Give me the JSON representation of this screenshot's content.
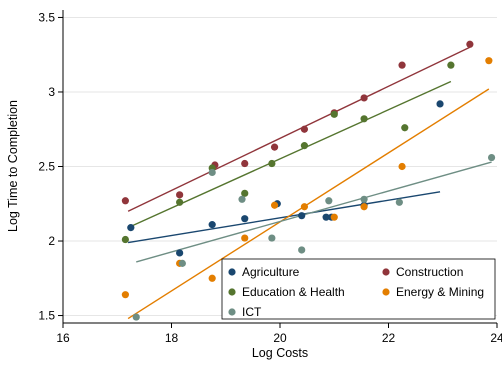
{
  "chart_data": {
    "type": "scatter",
    "title": "",
    "xlabel": "Log Costs",
    "ylabel": "Log Time to Completion",
    "xlim": [
      16,
      24
    ],
    "ylim": [
      1.45,
      3.55
    ],
    "x_ticks": [
      16,
      18,
      20,
      22,
      24
    ],
    "x_tick_labels": [
      "16",
      "18",
      "20",
      "22",
      "24"
    ],
    "y_ticks": [
      1.5,
      2,
      2.5,
      3,
      3.5
    ],
    "y_tick_labels": [
      "1.5",
      "2",
      "2.5",
      "3",
      "3.5"
    ],
    "grid": true,
    "grid_axis": "y",
    "legend_position": "bottom-right",
    "legend_columns": 2,
    "series": [
      {
        "name": "Agriculture",
        "color": "#1a476f",
        "points": [
          [
            17.25,
            2.09
          ],
          [
            18.15,
            1.92
          ],
          [
            18.75,
            2.11
          ],
          [
            19.35,
            2.15
          ],
          [
            19.95,
            2.25
          ],
          [
            20.4,
            2.17
          ],
          [
            20.85,
            2.16
          ],
          [
            20.95,
            2.16
          ],
          [
            21.55,
            2.24
          ],
          [
            22.95,
            2.92
          ]
        ],
        "fit": [
          [
            17.2,
            1.99
          ],
          [
            22.95,
            2.33
          ]
        ]
      },
      {
        "name": "Construction",
        "color": "#90353b",
        "points": [
          [
            17.15,
            2.27
          ],
          [
            18.15,
            2.31
          ],
          [
            18.8,
            2.51
          ],
          [
            19.35,
            2.52
          ],
          [
            19.9,
            2.63
          ],
          [
            20.45,
            2.75
          ],
          [
            21.0,
            2.86
          ],
          [
            21.55,
            2.96
          ],
          [
            22.25,
            3.18
          ],
          [
            23.5,
            3.32
          ]
        ],
        "fit": [
          [
            17.2,
            2.2
          ],
          [
            23.5,
            3.3
          ]
        ]
      },
      {
        "name": "Education & Health",
        "color": "#55752f",
        "points": [
          [
            17.15,
            2.01
          ],
          [
            18.15,
            2.26
          ],
          [
            18.75,
            2.49
          ],
          [
            19.35,
            2.32
          ],
          [
            19.85,
            2.52
          ],
          [
            20.45,
            2.64
          ],
          [
            21.0,
            2.85
          ],
          [
            21.55,
            2.82
          ],
          [
            22.3,
            2.76
          ],
          [
            23.15,
            3.18
          ]
        ],
        "fit": [
          [
            17.2,
            2.09
          ],
          [
            23.15,
            3.07
          ]
        ]
      },
      {
        "name": "Energy & Mining",
        "color": "#e37e00",
        "points": [
          [
            17.15,
            1.64
          ],
          [
            18.15,
            1.85
          ],
          [
            18.75,
            1.75
          ],
          [
            19.35,
            2.02
          ],
          [
            19.9,
            2.24
          ],
          [
            20.45,
            2.23
          ],
          [
            21.0,
            2.16
          ],
          [
            21.55,
            2.23
          ],
          [
            22.25,
            2.5
          ],
          [
            23.85,
            3.21
          ]
        ],
        "fit": [
          [
            17.2,
            1.48
          ],
          [
            23.85,
            3.02
          ]
        ]
      },
      {
        "name": "ICT",
        "color": "#6e8e84",
        "points": [
          [
            17.35,
            1.49
          ],
          [
            18.2,
            1.85
          ],
          [
            18.75,
            2.46
          ],
          [
            19.3,
            2.28
          ],
          [
            19.85,
            2.02
          ],
          [
            20.4,
            1.94
          ],
          [
            20.9,
            2.27
          ],
          [
            21.55,
            2.28
          ],
          [
            22.2,
            2.26
          ],
          [
            23.9,
            2.56
          ]
        ],
        "fit": [
          [
            17.35,
            1.86
          ],
          [
            23.9,
            2.53
          ]
        ]
      }
    ]
  }
}
